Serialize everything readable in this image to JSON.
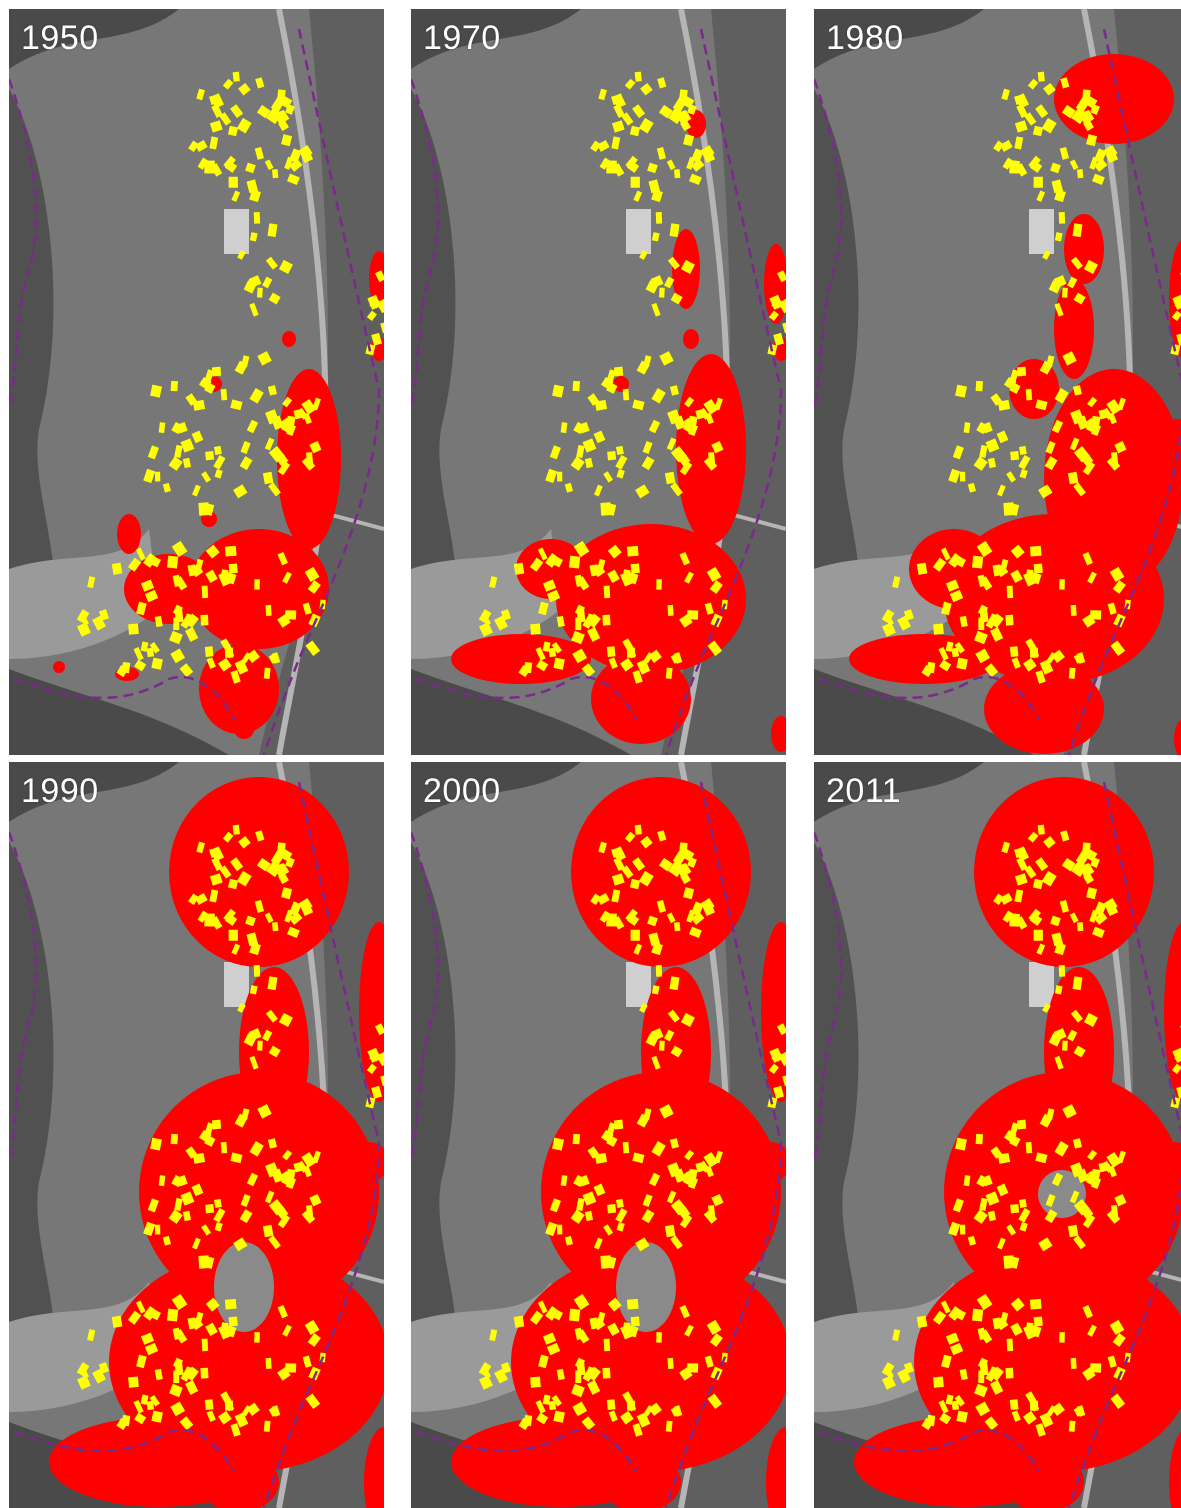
{
  "panels": [
    {
      "year": "1950",
      "stage": 0
    },
    {
      "year": "1970",
      "stage": 1
    },
    {
      "year": "1980",
      "stage": 2
    },
    {
      "year": "1990",
      "stage": 3
    },
    {
      "year": "2000",
      "stage": 4
    },
    {
      "year": "2011",
      "stage": 5
    }
  ],
  "colors": {
    "aerial_background": "#777777",
    "forest": "#4a4a4a",
    "field": "#9a9a9a",
    "settlement_area": "#ff0000",
    "buildings": "#ffff00",
    "boundary_line": "#7a2a8a",
    "year_label": "#ffffff"
  }
}
